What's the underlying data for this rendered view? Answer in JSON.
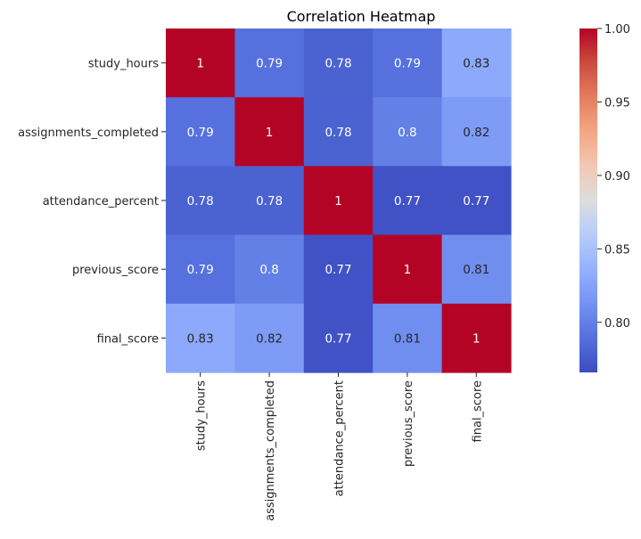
{
  "chart_data": {
    "type": "heatmap",
    "title": "Correlation Heatmap",
    "xlabel": "",
    "ylabel": "",
    "row_labels": [
      "study_hours",
      "assignments_completed",
      "attendance_percent",
      "previous_score",
      "final_score"
    ],
    "col_labels": [
      "study_hours",
      "assignments_completed",
      "attendance_percent",
      "previous_score",
      "final_score"
    ],
    "values": [
      [
        1.0,
        0.79,
        0.78,
        0.79,
        0.83
      ],
      [
        0.79,
        1.0,
        0.78,
        0.8,
        0.82
      ],
      [
        0.78,
        0.78,
        1.0,
        0.77,
        0.77
      ],
      [
        0.79,
        0.8,
        0.77,
        1.0,
        0.81
      ],
      [
        0.83,
        0.82,
        0.77,
        0.81,
        1.0
      ]
    ],
    "annotations": [
      [
        "1",
        "0.79",
        "0.78",
        "0.79",
        "0.83"
      ],
      [
        "0.79",
        "1",
        "0.78",
        "0.8",
        "0.82"
      ],
      [
        "0.78",
        "0.78",
        "1",
        "0.77",
        "0.77"
      ],
      [
        "0.79",
        "0.8",
        "0.77",
        "1",
        "0.81"
      ],
      [
        "0.83",
        "0.82",
        "0.77",
        "0.81",
        "1"
      ]
    ],
    "colormap": "coolwarm",
    "vmin": 0.7659,
    "vmax": 1.0,
    "colorbar": {
      "ticks": [
        0.8,
        0.85,
        0.9,
        0.95,
        1.0
      ],
      "tick_labels": [
        "0.80",
        "0.85",
        "0.90",
        "0.95",
        "1.00"
      ]
    }
  }
}
